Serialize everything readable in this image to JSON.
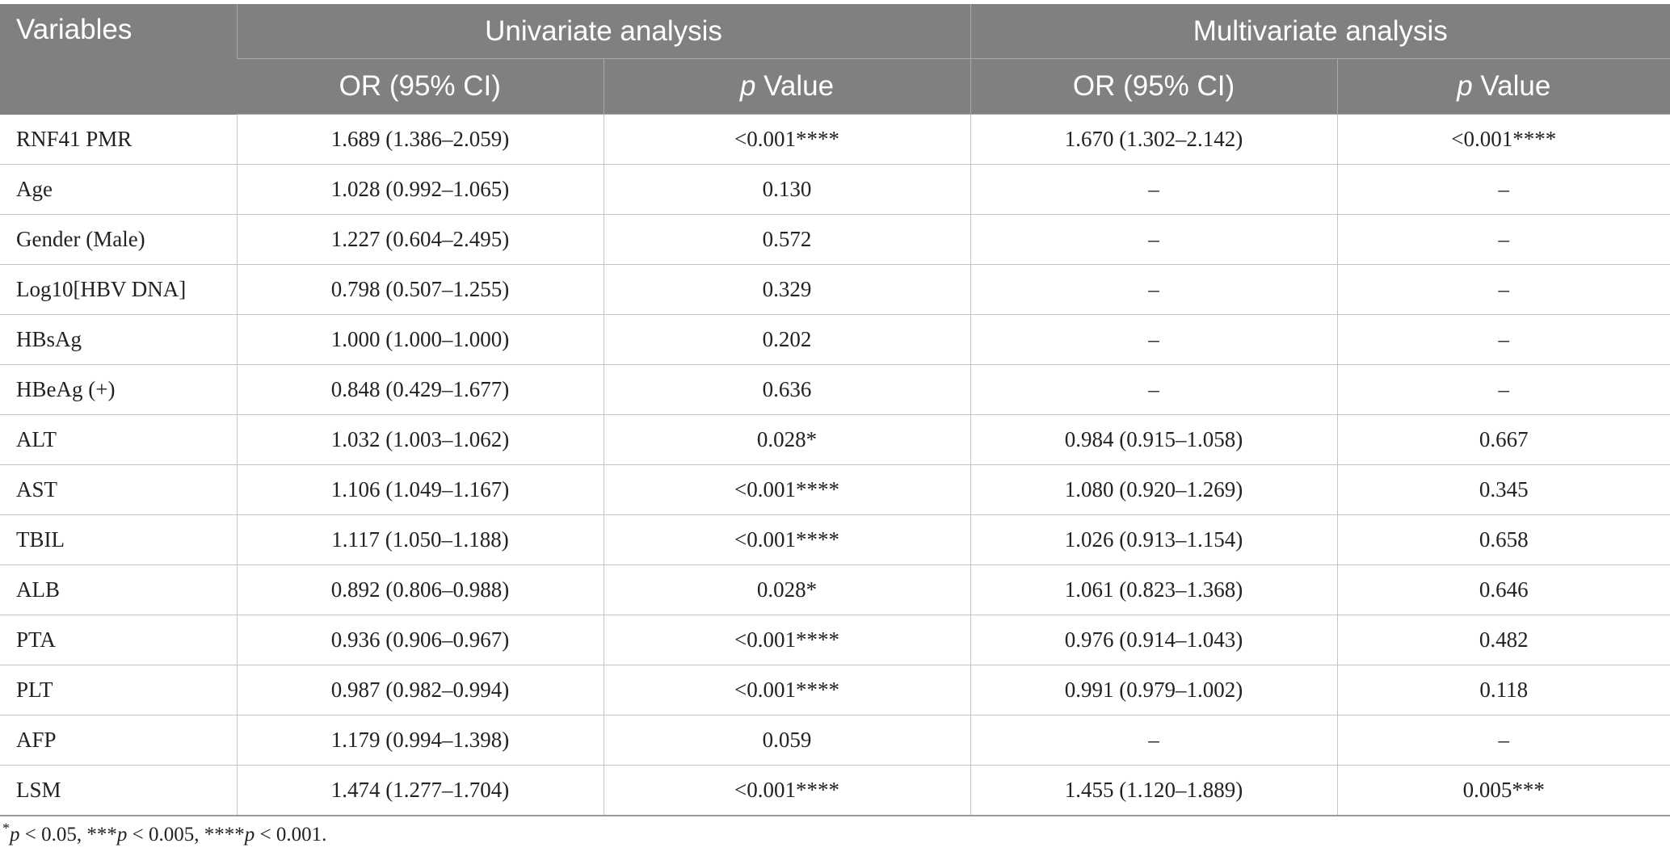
{
  "table": {
    "headers": {
      "variables": "Variables",
      "univariate": "Univariate analysis",
      "multivariate": "Multivariate analysis",
      "or_ci": "OR (95% CI)",
      "p_italic": "p",
      "value": " Value"
    },
    "rows": [
      {
        "variable": "RNF41 PMR",
        "uni_or": "1.689 (1.386–2.059)",
        "uni_p": "<0.001****",
        "multi_or": "1.670 (1.302–2.142)",
        "multi_p": "<0.001****"
      },
      {
        "variable": "Age",
        "uni_or": "1.028 (0.992–1.065)",
        "uni_p": "0.130",
        "multi_or": "–",
        "multi_p": "–"
      },
      {
        "variable": "Gender (Male)",
        "uni_or": "1.227 (0.604–2.495)",
        "uni_p": "0.572",
        "multi_or": "–",
        "multi_p": "–"
      },
      {
        "variable": "Log10[HBV DNA]",
        "uni_or": "0.798 (0.507–1.255)",
        "uni_p": "0.329",
        "multi_or": "–",
        "multi_p": "–"
      },
      {
        "variable": "HBsAg",
        "uni_or": "1.000 (1.000–1.000)",
        "uni_p": "0.202",
        "multi_or": "–",
        "multi_p": "–"
      },
      {
        "variable": "HBeAg (+)",
        "uni_or": "0.848 (0.429–1.677)",
        "uni_p": "0.636",
        "multi_or": "–",
        "multi_p": "–"
      },
      {
        "variable": "ALT",
        "uni_or": "1.032 (1.003–1.062)",
        "uni_p": "0.028*",
        "multi_or": "0.984 (0.915–1.058)",
        "multi_p": "0.667"
      },
      {
        "variable": "AST",
        "uni_or": "1.106 (1.049–1.167)",
        "uni_p": "<0.001****",
        "multi_or": "1.080 (0.920–1.269)",
        "multi_p": "0.345"
      },
      {
        "variable": "TBIL",
        "uni_or": "1.117 (1.050–1.188)",
        "uni_p": "<0.001****",
        "multi_or": "1.026 (0.913–1.154)",
        "multi_p": "0.658"
      },
      {
        "variable": "ALB",
        "uni_or": "0.892 (0.806–0.988)",
        "uni_p": "0.028*",
        "multi_or": "1.061 (0.823–1.368)",
        "multi_p": "0.646"
      },
      {
        "variable": "PTA",
        "uni_or": "0.936 (0.906–0.967)",
        "uni_p": "<0.001****",
        "multi_or": "0.976 (0.914–1.043)",
        "multi_p": "0.482"
      },
      {
        "variable": "PLT",
        "uni_or": "0.987 (0.982–0.994)",
        "uni_p": "<0.001****",
        "multi_or": "0.991 (0.979–1.002)",
        "multi_p": "0.118"
      },
      {
        "variable": "AFP",
        "uni_or": "1.179 (0.994–1.398)",
        "uni_p": "0.059",
        "multi_or": "–",
        "multi_p": "–"
      },
      {
        "variable": "LSM",
        "uni_or": "1.474 (1.277–1.704)",
        "uni_p": "<0.001****",
        "multi_or": "1.455 (1.120–1.889)",
        "multi_p": "0.005***"
      }
    ]
  },
  "footnote": {
    "part1_sup": "*",
    "part1_p": "p",
    "part1_rest": " < 0.05, ***",
    "part2_p": "p",
    "part2_rest": " < 0.005, ****",
    "part3_p": "p",
    "part3_rest": " < 0.001."
  },
  "colors": {
    "header_bg": "#808080",
    "header_text": "#ffffff",
    "grid_line": "#c4c4c4",
    "body_text": "#222222"
  }
}
